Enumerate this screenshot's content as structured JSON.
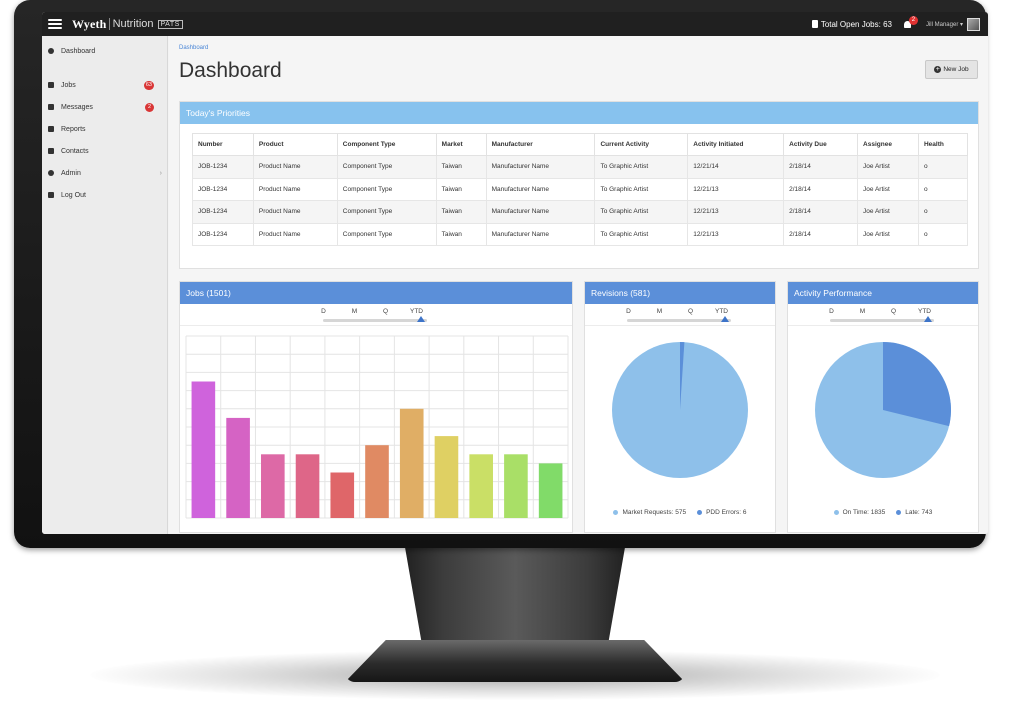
{
  "topbar": {
    "brand": "Wyeth",
    "brand_sub": "Nutrition",
    "brand_tag": "PATS",
    "open_jobs": "Total Open Jobs: 63",
    "notification_count": "2",
    "user": "Jill Manager ▾"
  },
  "sidebar": {
    "items": [
      {
        "label": "Dashboard",
        "icon": "dashboard-icon"
      },
      {
        "label": "Jobs",
        "icon": "files-icon",
        "badge": "63"
      },
      {
        "label": "Messages",
        "icon": "envelope-icon",
        "badge": "2"
      },
      {
        "label": "Reports",
        "icon": "list-icon"
      },
      {
        "label": "Contacts",
        "icon": "book-icon"
      },
      {
        "label": "Admin",
        "icon": "gear-icon",
        "chevron": "›"
      },
      {
        "label": "Log Out",
        "icon": "unlock-icon"
      }
    ]
  },
  "main": {
    "breadcrumb": "Dashboard",
    "title": "Dashboard",
    "new_job_label": "New Job"
  },
  "priorities": {
    "title": "Today's Priorities",
    "columns": [
      "Number",
      "Product",
      "Component Type",
      "Market",
      "Manufacturer",
      "Current Activity",
      "Activity Initiated",
      "Activity Due",
      "Assignee",
      "Health"
    ],
    "rows": [
      [
        "JOB-1234",
        "Product Name",
        "Component Type",
        "Taiwan",
        "Manufacturer Name",
        "To Graphic Artist",
        "12/21/14",
        "2/18/14",
        "Joe Artist",
        "o"
      ],
      [
        "JOB-1234",
        "Product Name",
        "Component Type",
        "Taiwan",
        "Manufacturer Name",
        "To Graphic Artist",
        "12/21/13",
        "2/18/14",
        "Joe Artist",
        "o"
      ],
      [
        "JOB-1234",
        "Product Name",
        "Component Type",
        "Taiwan",
        "Manufacturer Name",
        "To Graphic Artist",
        "12/21/13",
        "2/18/14",
        "Joe Artist",
        "o"
      ],
      [
        "JOB-1234",
        "Product Name",
        "Component Type",
        "Taiwan",
        "Manufacturer Name",
        "To Graphic Artist",
        "12/21/13",
        "2/18/14",
        "Joe Artist",
        "o"
      ]
    ]
  },
  "period_options": [
    "D",
    "M",
    "Q",
    "YTD"
  ],
  "period_selected": "YTD",
  "chart_data": [
    {
      "type": "bar",
      "title": "Jobs (1501)",
      "values": [
        75,
        55,
        35,
        35,
        25,
        40,
        60,
        45,
        35,
        35,
        30
      ],
      "colors": [
        "#cf63dc",
        "#d563c4",
        "#dd69a6",
        "#de6688",
        "#df6669",
        "#e08a63",
        "#e0ae65",
        "#dfd063",
        "#cadf66",
        "#a9df67",
        "#81db69"
      ],
      "ylim": [
        0,
        100
      ],
      "grid": true
    },
    {
      "type": "pie",
      "title": "Revisions (581)",
      "slices": [
        {
          "label": "Market Requests: 575",
          "value": 575,
          "color": "#8ec0ea"
        },
        {
          "label": "PDD Errors: 6",
          "value": 6,
          "color": "#5b8fd9"
        }
      ],
      "legend": "bottom"
    },
    {
      "type": "pie",
      "title": "Activity Performance",
      "slices": [
        {
          "label": "On Time: 1835",
          "value": 1835,
          "color": "#8ec0ea"
        },
        {
          "label": "Late: 743",
          "value": 743,
          "color": "#5b8fd9"
        }
      ],
      "legend": "bottom"
    }
  ]
}
